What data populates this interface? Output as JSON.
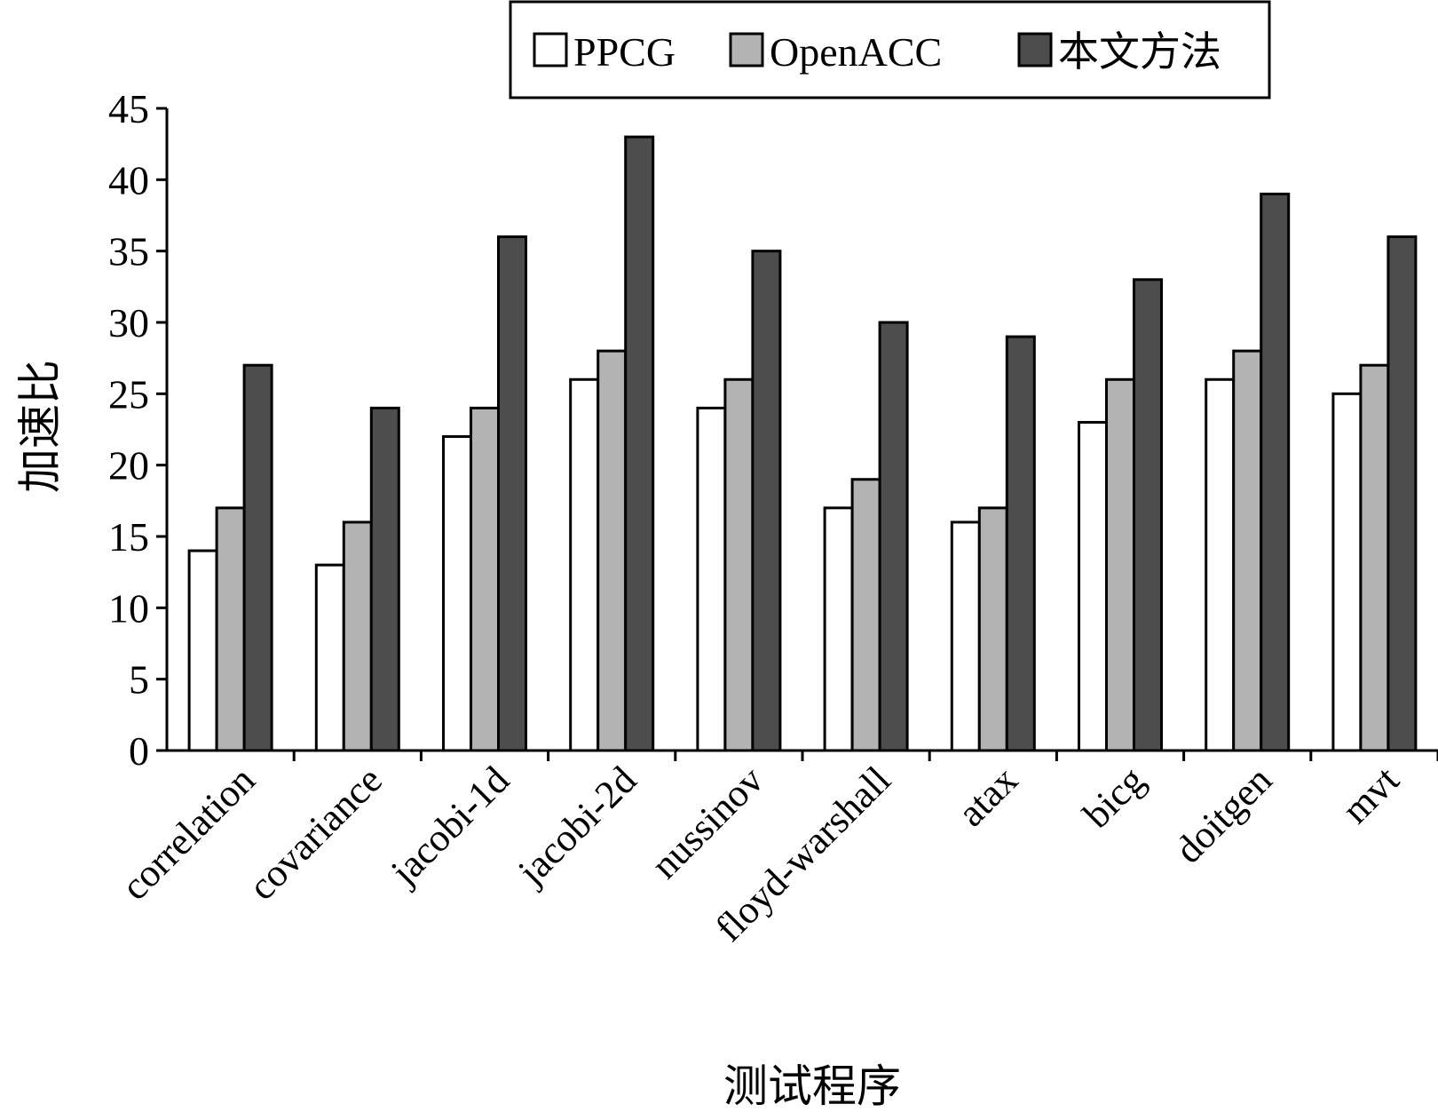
{
  "chart_data": {
    "type": "bar",
    "title": "",
    "xlabel": "测试程序",
    "ylabel": "加速比",
    "ylim": [
      0,
      45
    ],
    "yticks": [
      0,
      5,
      10,
      15,
      20,
      25,
      30,
      35,
      40,
      45
    ],
    "grid": false,
    "legend_position": "top",
    "categories": [
      "correlation",
      "covariance",
      "jacobi-1d",
      "jacobi-2d",
      "nussinov",
      "floyd-warshall",
      "atax",
      "bicg",
      "doitgen",
      "mvt"
    ],
    "series": [
      {
        "name": "PPCG",
        "color": "#ffffff",
        "values": [
          14,
          13,
          22,
          26,
          24,
          17,
          16,
          23,
          26,
          25
        ]
      },
      {
        "name": "OpenACC",
        "color": "#b3b3b3",
        "values": [
          17,
          16,
          24,
          28,
          26,
          19,
          17,
          26,
          28,
          27
        ]
      },
      {
        "name": "本文方法",
        "color": "#4d4d4d",
        "values": [
          27,
          24,
          36,
          43,
          35,
          30,
          29,
          33,
          39,
          36
        ]
      }
    ]
  }
}
